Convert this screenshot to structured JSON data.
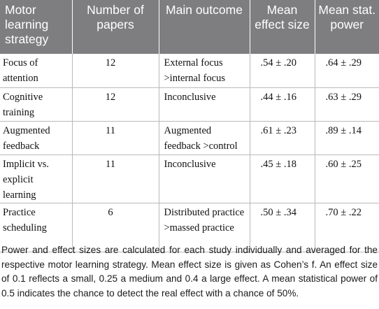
{
  "table": {
    "headers": [
      "Motor learning strategy",
      "Number of papers",
      "Main outcome",
      "Mean effect size",
      "Mean stat. power"
    ],
    "rows": [
      [
        "Focus of attention",
        "12",
        "External focus >internal focus",
        ".54 ± .20",
        ".64 ± .29"
      ],
      [
        "Cognitive training",
        "12",
        "Inconclusive",
        ".44 ± .16",
        ".63 ± .29"
      ],
      [
        "Augmented feedback",
        "11",
        "Augmented feedback >control",
        ".61 ± .23",
        ".89 ± .14"
      ],
      [
        "Implicit vs. explicit learning",
        "11",
        "Inconclusive",
        ".45 ± .18",
        ".60 ± .25"
      ],
      [
        "Practice scheduling",
        "6",
        "Distributed practice >massed practice",
        ".50 ± .34",
        ".70 ± .22"
      ]
    ]
  },
  "footnote": "Power and effect sizes are calculated for each study individually and averaged for the respective motor learning strategy. Mean effect size is given as Cohen’s f. An effect size of 0.1 reflects a small, 0.25 a medium and 0.4 a large effect. A mean statistical power of 0.5 indicates the chance to detect the real effect with a chance of 50%.",
  "colors": {
    "header_background": "#7e7e80",
    "header_text": "#ffffff",
    "grid_line": "#b9b9b9"
  }
}
